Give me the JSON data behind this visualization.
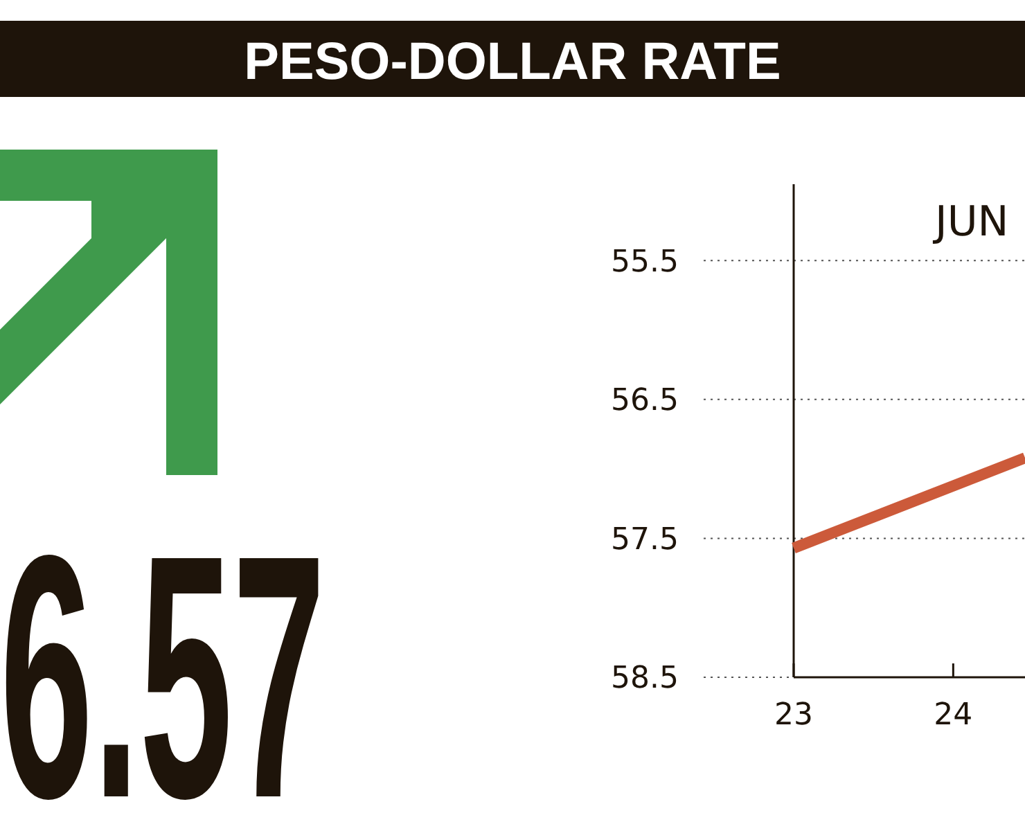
{
  "chart_data": {
    "type": "line",
    "title": "PESO-DOLLAR RATE",
    "annotations": [
      "6.57",
      "JUN"
    ],
    "x": [
      23,
      24.45
    ],
    "series": [
      {
        "color": "#cc5a3a",
        "values": [
          57.57,
          56.92
        ]
      }
    ],
    "xlim": [
      23,
      24.45
    ],
    "xticks": [
      23,
      24
    ],
    "ylim": [
      58.5,
      54.95
    ],
    "yticks": [
      55.5,
      56.5,
      57.5,
      58.5
    ],
    "grid": "y",
    "line_style": "solid"
  }
}
